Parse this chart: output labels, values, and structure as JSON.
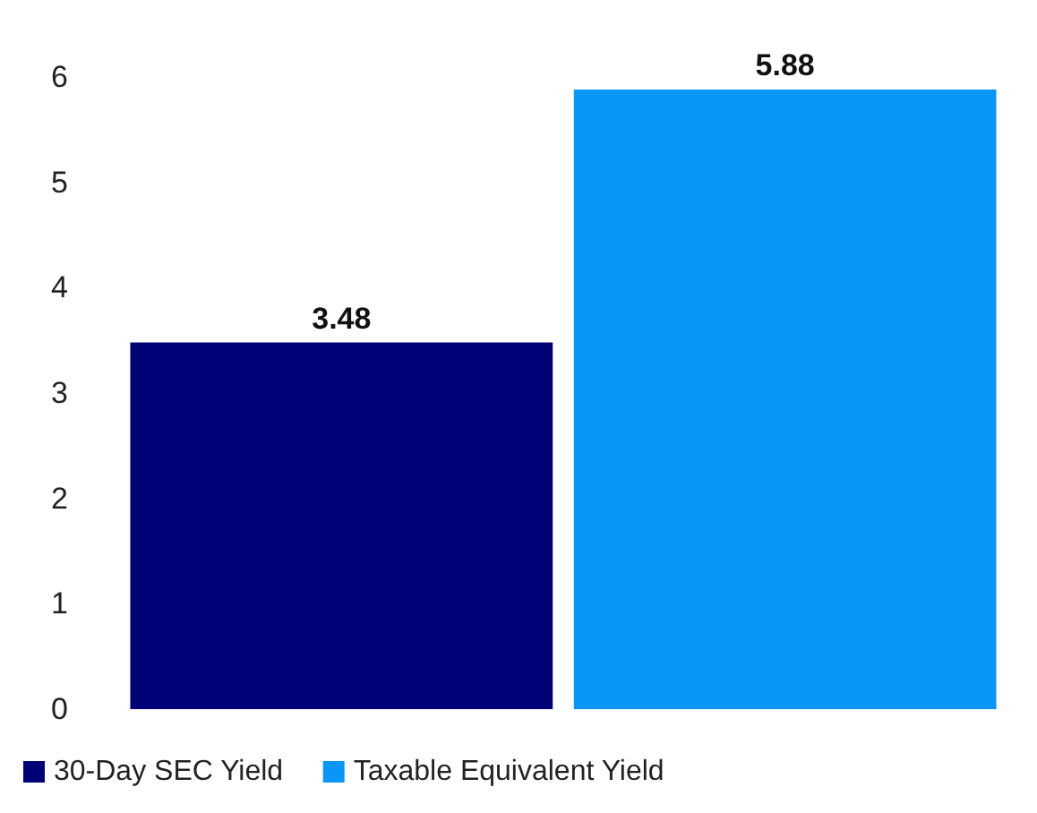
{
  "chart_data": {
    "type": "bar",
    "categories": [
      null
    ],
    "series": [
      {
        "name": "30-Day SEC Yield",
        "color": "#000077",
        "values": [
          3.48
        ]
      },
      {
        "name": "Taxable Equivalent Yield",
        "color": "#0996f7",
        "values": [
          5.88
        ]
      }
    ],
    "ylim": [
      0,
      6
    ],
    "yticks": [
      0,
      1,
      2,
      3,
      4,
      5,
      6
    ],
    "grid": false,
    "data_labels": true,
    "legend": "bottom left"
  }
}
